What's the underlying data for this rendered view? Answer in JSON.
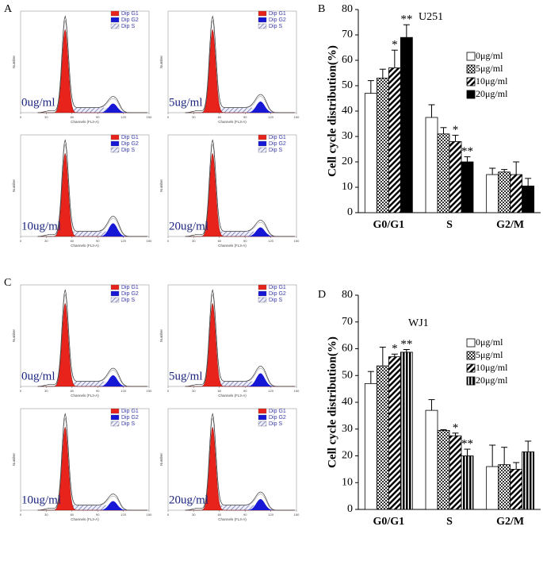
{
  "flow_figures": [
    {
      "letter": "A",
      "plots": [
        {
          "dose": "0ug/ml"
        },
        {
          "dose": "5ug/ml"
        },
        {
          "dose": "10ug/ml"
        },
        {
          "dose": "20ug/ml"
        }
      ]
    },
    {
      "letter": "C",
      "plots": [
        {
          "dose": "0ug/ml"
        },
        {
          "dose": "5ug/ml"
        },
        {
          "dose": "10ug/ml"
        },
        {
          "dose": "20ug/ml"
        }
      ]
    }
  ],
  "flow_legend": [
    {
      "name": "Dip G1",
      "color": "#e8231c"
    },
    {
      "name": "Dip G2",
      "color": "#1717d6"
    },
    {
      "name": "Dip S",
      "color": "#9aa0c0"
    }
  ],
  "flow_axes": {
    "xlabel": "Channels (FL3-A)",
    "ylabel": "Number",
    "xlim": [
      0,
      150
    ],
    "xticks": [
      0,
      30,
      60,
      90,
      120,
      150
    ]
  },
  "chart_data": [
    {
      "type": "bar",
      "letter": "B",
      "title": "U251",
      "ylabel": "Cell cycle distribution(%)",
      "categories": [
        "G0/G1",
        "S",
        "G2/M"
      ],
      "ylim": [
        0,
        80
      ],
      "yticks": [
        0,
        10,
        20,
        30,
        40,
        50,
        60,
        70,
        80
      ],
      "series": [
        {
          "name": "0μg/ml",
          "pattern": "none",
          "color": "#000000",
          "values": [
            47,
            37.5,
            15
          ],
          "errors": [
            5,
            5,
            2.5
          ]
        },
        {
          "name": "5μg/ml",
          "pattern": "checker",
          "color": "#000000",
          "values": [
            53,
            31,
            16
          ],
          "errors": [
            3.5,
            2.5,
            1
          ]
        },
        {
          "name": "10μg/ml",
          "pattern": "diagonal",
          "color": "#000000",
          "values": [
            57,
            28,
            15
          ],
          "errors": [
            7,
            2.5,
            5
          ],
          "significance": [
            "*",
            "*",
            null
          ]
        },
        {
          "name": "20μg/ml",
          "pattern": "solid",
          "color": "#000000",
          "values": [
            69,
            20,
            10.5
          ],
          "errors": [
            5,
            2,
            3
          ],
          "significance": [
            "**",
            "**",
            null
          ]
        }
      ]
    },
    {
      "type": "bar",
      "letter": "D",
      "title": "WJ1",
      "ylabel": "Cell cycle distribution(%)",
      "categories": [
        "G0/G1",
        "S",
        "G2/M"
      ],
      "ylim": [
        0,
        80
      ],
      "yticks": [
        0,
        10,
        20,
        30,
        40,
        50,
        60,
        70,
        80
      ],
      "series": [
        {
          "name": "0μg/ml",
          "pattern": "none",
          "color": "#000000",
          "values": [
            47,
            37,
            16
          ],
          "errors": [
            4.5,
            4,
            8
          ]
        },
        {
          "name": "5μg/ml",
          "pattern": "checker",
          "color": "#000000",
          "values": [
            53.6,
            29.5,
            16.7
          ],
          "errors": [
            7,
            0.3,
            6.5
          ]
        },
        {
          "name": "10μg/ml",
          "pattern": "diagonal",
          "color": "#000000",
          "values": [
            57,
            27.5,
            15
          ],
          "errors": [
            1,
            1,
            2.5
          ],
          "significance": [
            "*",
            "*",
            null
          ]
        },
        {
          "name": "20μg/ml",
          "pattern": "vertical",
          "color": "#000000",
          "values": [
            58.7,
            20,
            21.5
          ],
          "errors": [
            1,
            2.5,
            4
          ],
          "significance": [
            "**",
            "**",
            null
          ]
        }
      ]
    }
  ]
}
